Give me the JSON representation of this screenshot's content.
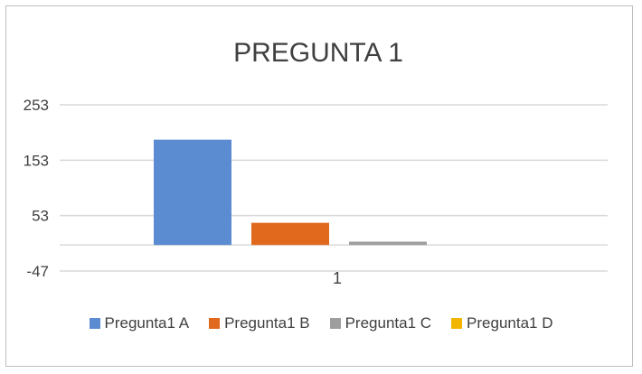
{
  "chart_data": {
    "type": "bar",
    "title": "PREGUNTA 1",
    "categories": [
      "1"
    ],
    "series": [
      {
        "name": "Pregunta1 A",
        "values": [
          190
        ],
        "color": "#5b8bd0"
      },
      {
        "name": "Pregunta1 B",
        "values": [
          40
        ],
        "color": "#e0691e"
      },
      {
        "name": "Pregunta1 C",
        "values": [
          6
        ],
        "color": "#9e9e9e"
      },
      {
        "name": "Pregunta1 D",
        "values": [
          0
        ],
        "color": "#f2b600"
      }
    ],
    "y_ticks": [
      -47,
      53,
      153,
      253
    ],
    "ylim": [
      -47,
      253
    ],
    "grid": true,
    "legend_position": "bottom"
  }
}
